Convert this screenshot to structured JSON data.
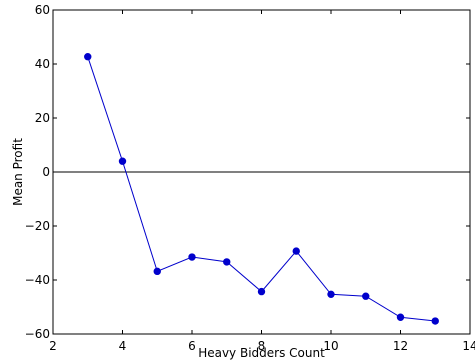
{
  "chart_data": {
    "type": "line",
    "xlabel": "Heavy Bidders Count",
    "ylabel": "Mean Profit",
    "xlim": [
      2,
      14
    ],
    "ylim": [
      -60,
      60
    ],
    "xticks": [
      2,
      4,
      6,
      8,
      10,
      12,
      14
    ],
    "yticks": [
      -60,
      -40,
      -20,
      0,
      20,
      40,
      60
    ],
    "grid": false,
    "reference_line_y": 0,
    "series": [
      {
        "color": "#0000cc",
        "x": [
          3,
          4,
          5,
          6,
          7,
          8,
          9,
          10,
          11,
          12,
          13
        ],
        "y": [
          42.7,
          4.0,
          -36.8,
          -31.5,
          -33.3,
          -44.3,
          -29.3,
          -45.3,
          -46.0,
          -53.8,
          -55.2
        ]
      }
    ]
  }
}
